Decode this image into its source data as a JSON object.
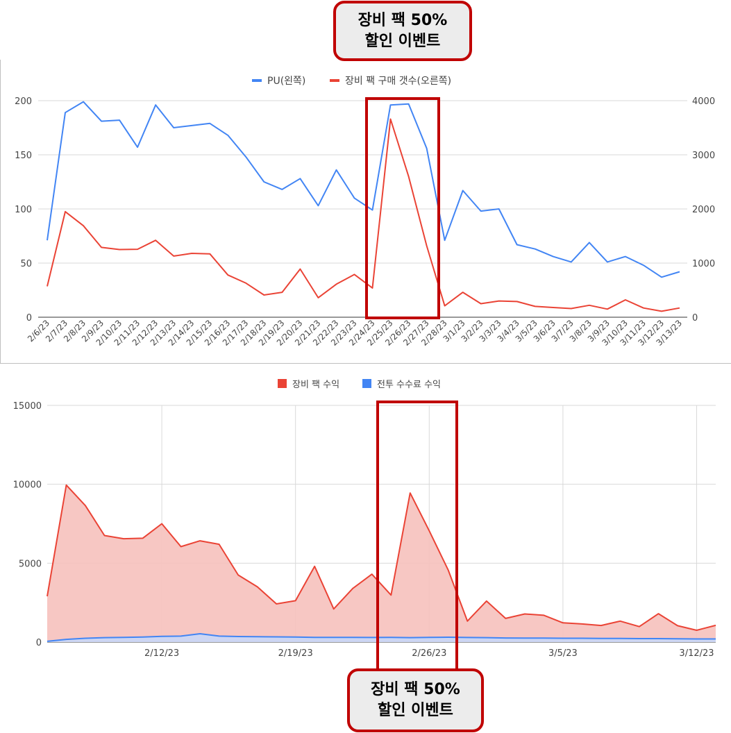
{
  "callouts": {
    "top": [
      "장비 팩 50%",
      "할인 이벤트"
    ],
    "bottom": [
      "장비 팩 50%",
      "할인 이벤트"
    ]
  },
  "colors": {
    "blue": "#4285f4",
    "red": "#ea4335",
    "red_fill": "#f6c1bd",
    "blue_fill": "#c8d7f8",
    "highlight": "#c00000",
    "grid": "#cccccc"
  },
  "chart_data": [
    {
      "type": "line",
      "x": [
        "2/6/23",
        "2/7/23",
        "2/8/23",
        "2/9/23",
        "2/10/23",
        "2/11/23",
        "2/12/23",
        "2/13/23",
        "2/14/23",
        "2/15/23",
        "2/16/23",
        "2/17/23",
        "2/18/23",
        "2/19/23",
        "2/20/23",
        "2/21/23",
        "2/22/23",
        "2/23/23",
        "2/24/23",
        "2/25/23",
        "2/26/23",
        "2/27/23",
        "2/28/23",
        "3/1/23",
        "3/2/23",
        "3/3/23",
        "3/4/23",
        "3/5/23",
        "3/6/23",
        "3/7/23",
        "3/8/23",
        "3/9/23",
        "3/10/23",
        "3/11/23",
        "3/12/23",
        "3/13/23"
      ],
      "series": [
        {
          "name": "PU(왼쪽)",
          "axis": "left",
          "color": "#4285f4",
          "values": [
            71,
            189,
            199,
            181,
            182,
            157,
            196,
            175,
            177,
            179,
            168,
            148,
            125,
            118,
            128,
            103,
            136,
            110,
            99,
            196,
            197,
            156,
            71,
            117,
            98,
            100,
            67,
            63,
            56,
            51,
            69,
            51,
            56,
            48,
            37,
            42
          ]
        },
        {
          "name": "장비 팩 구매 갯수(오른쪽)",
          "axis": "right",
          "color": "#ea4335",
          "values": [
            570,
            1950,
            1690,
            1290,
            1250,
            1255,
            1420,
            1130,
            1180,
            1170,
            780,
            630,
            410,
            460,
            890,
            360,
            610,
            790,
            540,
            3660,
            2600,
            1320,
            210,
            460,
            250,
            300,
            290,
            200,
            180,
            160,
            220,
            150,
            320,
            170,
            110,
            170
          ]
        }
      ],
      "y_left": {
        "min": 0,
        "max": 200,
        "ticks": [
          0,
          50,
          100,
          150,
          200
        ]
      },
      "y_right": {
        "min": 0,
        "max": 4000,
        "ticks": [
          0,
          1000,
          2000,
          3000,
          4000
        ]
      },
      "legend": "top-center",
      "grid": true,
      "highlight_range": [
        "2/24/23",
        "2/27/23"
      ]
    },
    {
      "type": "area",
      "x": [
        "2/6/23",
        "2/7/23",
        "2/8/23",
        "2/9/23",
        "2/10/23",
        "2/11/23",
        "2/12/23",
        "2/13/23",
        "2/14/23",
        "2/15/23",
        "2/16/23",
        "2/17/23",
        "2/18/23",
        "2/19/23",
        "2/20/23",
        "2/21/23",
        "2/22/23",
        "2/23/23",
        "2/24/23",
        "2/25/23",
        "2/26/23",
        "2/27/23",
        "2/28/23",
        "3/1/23",
        "3/2/23",
        "3/3/23",
        "3/4/23",
        "3/5/23",
        "3/6/23",
        "3/7/23",
        "3/8/23",
        "3/9/23",
        "3/10/23",
        "3/11/23",
        "3/12/23",
        "3/13/23"
      ],
      "x_ticks": [
        "2/12/23",
        "2/19/23",
        "2/26/23",
        "3/5/23",
        "3/12/23"
      ],
      "series": [
        {
          "name": "장비 팩 수익",
          "color": "#ea4335",
          "values": [
            2900,
            9950,
            8650,
            6750,
            6550,
            6580,
            7500,
            6050,
            6420,
            6200,
            4250,
            3500,
            2420,
            2620,
            4800,
            2100,
            3400,
            4300,
            2980,
            9450,
            7050,
            4550,
            1330,
            2600,
            1500,
            1780,
            1700,
            1220,
            1150,
            1050,
            1330,
            980,
            1800,
            1040,
            750,
            1060
          ]
        },
        {
          "name": "전투 수수료 수익",
          "color": "#4285f4",
          "values": [
            50,
            170,
            240,
            280,
            300,
            320,
            360,
            380,
            530,
            380,
            350,
            340,
            330,
            320,
            300,
            300,
            300,
            290,
            300,
            280,
            300,
            310,
            290,
            280,
            260,
            250,
            250,
            240,
            240,
            230,
            230,
            220,
            220,
            210,
            200,
            200
          ]
        }
      ],
      "y": {
        "min": 0,
        "max": 15000,
        "ticks": [
          0,
          5000,
          10000,
          15000
        ]
      },
      "legend": "top-center",
      "grid": true,
      "highlight_range": [
        "2/24/23",
        "2/28/23"
      ]
    }
  ]
}
